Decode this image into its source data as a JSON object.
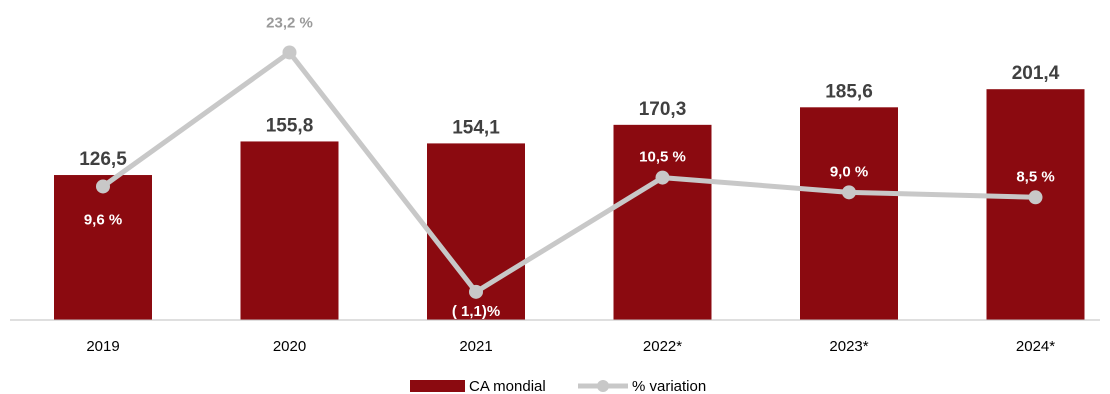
{
  "chart_data": {
    "type": "bar",
    "categories": [
      "2019",
      "2020",
      "2021",
      "2022*",
      "2023*",
      "2024*"
    ],
    "series": [
      {
        "name": "CA mondial",
        "type": "bar",
        "values": [
          126.5,
          155.8,
          154.1,
          170.3,
          185.6,
          201.4
        ],
        "labels": [
          "126,5",
          "155,8",
          "154,1",
          "170,3",
          "185,6",
          "201,4"
        ],
        "color": "#8b0a10"
      },
      {
        "name": "% variation",
        "type": "line",
        "values": [
          9.6,
          23.2,
          -1.1,
          10.5,
          9.0,
          8.5
        ],
        "labels": [
          "9,6 %",
          "23,2 %",
          "( 1,1)%",
          "10,5 %",
          "9,0 %",
          "8,5 %"
        ],
        "color": "#c8c8c8"
      }
    ],
    "label_colors": {
      "bar_value": "#404040",
      "pct_on_bar": "#ffffff",
      "pct_off_bar": "#9a9a9a"
    },
    "legend_position": "bottom",
    "grid": false
  }
}
